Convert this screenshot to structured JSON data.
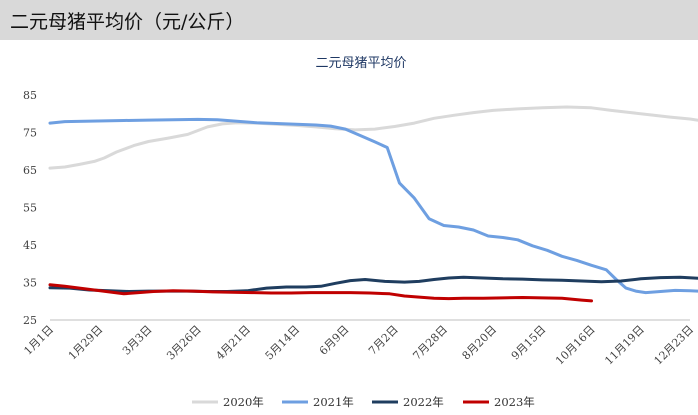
{
  "header": {
    "title": "二元母猪平均价（元/公斤）"
  },
  "chart_data": {
    "type": "line",
    "title": "二元母猪平均价",
    "xlabel": "",
    "ylabel": "",
    "ylim": [
      25,
      85
    ],
    "yticks": [
      25,
      35,
      45,
      55,
      65,
      75,
      85
    ],
    "x_tick_labels": [
      "1月1日",
      "1月29日",
      "3月3日",
      "3月26日",
      "4月21日",
      "5月14日",
      "6月9日",
      "7月2日",
      "7月28日",
      "8月20日",
      "9月15日",
      "10月16日",
      "11月19日",
      "12月23日"
    ],
    "grid": false,
    "legend_position": "bottom",
    "series": [
      {
        "name": "2020年",
        "color": "#d9d9d9",
        "points": [
          [
            0,
            65.5
          ],
          [
            0.3,
            65.8
          ],
          [
            0.6,
            66.5
          ],
          [
            0.9,
            67.3
          ],
          [
            1.1,
            68.2
          ],
          [
            1.35,
            69.8
          ],
          [
            1.7,
            71.5
          ],
          [
            2.0,
            72.6
          ],
          [
            2.4,
            73.5
          ],
          [
            2.8,
            74.5
          ],
          [
            3.2,
            76.5
          ],
          [
            3.5,
            77.3
          ],
          [
            3.8,
            77.6
          ],
          [
            4.2,
            77.5
          ],
          [
            4.6,
            77.2
          ],
          [
            5.0,
            76.9
          ],
          [
            5.4,
            76.5
          ],
          [
            5.8,
            76.0
          ],
          [
            6.2,
            75.7
          ],
          [
            6.6,
            75.9
          ],
          [
            7.0,
            76.6
          ],
          [
            7.4,
            77.5
          ],
          [
            7.8,
            78.8
          ],
          [
            8.2,
            79.6
          ],
          [
            8.6,
            80.3
          ],
          [
            9.0,
            80.9
          ],
          [
            9.5,
            81.3
          ],
          [
            10.0,
            81.6
          ],
          [
            10.5,
            81.8
          ],
          [
            11.0,
            81.6
          ],
          [
            11.4,
            80.9
          ],
          [
            11.8,
            80.3
          ],
          [
            12.2,
            79.7
          ],
          [
            12.6,
            79.1
          ],
          [
            13.0,
            78.6
          ],
          [
            13.4,
            77.8
          ],
          [
            13.9,
            77.2
          ]
        ]
      },
      {
        "name": "2021年",
        "color": "#6e9fe1",
        "points": [
          [
            0,
            77.5
          ],
          [
            0.3,
            77.9
          ],
          [
            0.7,
            78.0
          ],
          [
            1.1,
            78.1
          ],
          [
            1.5,
            78.2
          ],
          [
            2.0,
            78.3
          ],
          [
            2.5,
            78.4
          ],
          [
            3.0,
            78.5
          ],
          [
            3.4,
            78.4
          ],
          [
            3.8,
            78.0
          ],
          [
            4.2,
            77.6
          ],
          [
            4.6,
            77.4
          ],
          [
            5.0,
            77.2
          ],
          [
            5.4,
            77.0
          ],
          [
            5.7,
            76.7
          ],
          [
            6.0,
            75.9
          ],
          [
            6.3,
            74.2
          ],
          [
            6.6,
            72.5
          ],
          [
            6.85,
            71.0
          ],
          [
            7.1,
            61.5
          ],
          [
            7.4,
            57.5
          ],
          [
            7.7,
            52.0
          ],
          [
            8.0,
            50.2
          ],
          [
            8.3,
            49.8
          ],
          [
            8.6,
            49.0
          ],
          [
            8.9,
            47.4
          ],
          [
            9.2,
            47.0
          ],
          [
            9.5,
            46.4
          ],
          [
            9.8,
            44.8
          ],
          [
            10.1,
            43.6
          ],
          [
            10.4,
            42.0
          ],
          [
            10.7,
            40.9
          ],
          [
            11.0,
            39.6
          ],
          [
            11.3,
            38.4
          ],
          [
            11.5,
            35.8
          ],
          [
            11.7,
            33.5
          ],
          [
            11.9,
            32.7
          ],
          [
            12.1,
            32.3
          ],
          [
            12.4,
            32.6
          ],
          [
            12.7,
            32.9
          ],
          [
            13.0,
            32.8
          ],
          [
            13.3,
            32.6
          ],
          [
            13.6,
            32.4
          ],
          [
            13.8,
            32.5
          ],
          [
            14.0,
            33.2
          ]
        ]
      },
      {
        "name": "2022年",
        "color": "#1f3d5f",
        "points": [
          [
            0,
            33.6
          ],
          [
            0.4,
            33.5
          ],
          [
            0.8,
            33.0
          ],
          [
            1.2,
            32.8
          ],
          [
            1.6,
            32.6
          ],
          [
            2.0,
            32.7
          ],
          [
            2.4,
            32.7
          ],
          [
            2.8,
            32.7
          ],
          [
            3.2,
            32.6
          ],
          [
            3.6,
            32.6
          ],
          [
            4.0,
            32.8
          ],
          [
            4.4,
            33.5
          ],
          [
            4.8,
            33.8
          ],
          [
            5.2,
            33.8
          ],
          [
            5.5,
            34.0
          ],
          [
            5.8,
            34.8
          ],
          [
            6.1,
            35.5
          ],
          [
            6.4,
            35.8
          ],
          [
            6.8,
            35.3
          ],
          [
            7.2,
            35.1
          ],
          [
            7.5,
            35.3
          ],
          [
            7.8,
            35.8
          ],
          [
            8.1,
            36.2
          ],
          [
            8.4,
            36.4
          ],
          [
            8.8,
            36.2
          ],
          [
            9.2,
            36.0
          ],
          [
            9.6,
            35.9
          ],
          [
            10.0,
            35.7
          ],
          [
            10.4,
            35.6
          ],
          [
            10.8,
            35.4
          ],
          [
            11.2,
            35.2
          ],
          [
            11.6,
            35.4
          ],
          [
            12.0,
            36.0
          ],
          [
            12.4,
            36.3
          ],
          [
            12.8,
            36.4
          ],
          [
            13.2,
            36.1
          ],
          [
            13.6,
            35.6
          ],
          [
            14.0,
            35.1
          ]
        ]
      },
      {
        "name": "2023年",
        "color": "#c00000",
        "points": [
          [
            0,
            34.4
          ],
          [
            0.3,
            34.0
          ],
          [
            0.6,
            33.5
          ],
          [
            0.9,
            33.0
          ],
          [
            1.2,
            32.5
          ],
          [
            1.5,
            32.0
          ],
          [
            1.8,
            32.3
          ],
          [
            2.1,
            32.6
          ],
          [
            2.5,
            32.8
          ],
          [
            2.9,
            32.7
          ],
          [
            3.3,
            32.5
          ],
          [
            3.7,
            32.4
          ],
          [
            4.1,
            32.3
          ],
          [
            4.5,
            32.2
          ],
          [
            4.9,
            32.2
          ],
          [
            5.3,
            32.3
          ],
          [
            5.7,
            32.3
          ],
          [
            6.1,
            32.3
          ],
          [
            6.5,
            32.2
          ],
          [
            6.9,
            32.0
          ],
          [
            7.2,
            31.4
          ],
          [
            7.5,
            31.1
          ],
          [
            7.8,
            30.8
          ],
          [
            8.1,
            30.7
          ],
          [
            8.4,
            30.8
          ],
          [
            8.8,
            30.8
          ],
          [
            9.2,
            30.9
          ],
          [
            9.6,
            31.0
          ],
          [
            10.0,
            30.9
          ],
          [
            10.4,
            30.8
          ],
          [
            10.8,
            30.3
          ],
          [
            11.0,
            30.1
          ]
        ]
      }
    ]
  }
}
